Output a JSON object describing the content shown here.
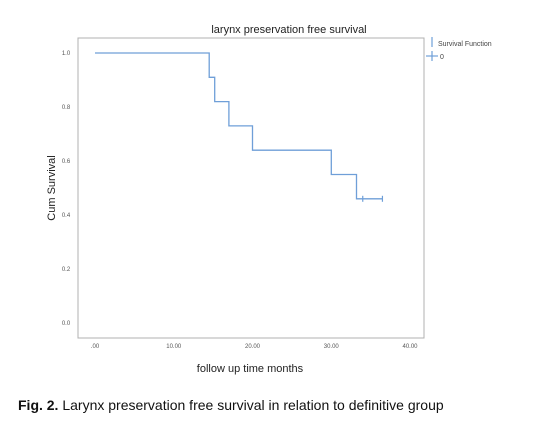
{
  "chart_data": {
    "type": "line",
    "title": "larynx preservation free survival",
    "xlabel": "follow up time months",
    "ylabel": "Cum Survival",
    "xlim": [
      0,
      40
    ],
    "ylim": [
      0,
      1
    ],
    "x_ticks": [
      ".00",
      "10.00",
      "20.00",
      "30.00",
      "40.00"
    ],
    "y_ticks": [
      "1.0",
      "0.8",
      "0.6",
      "0.4",
      "0.2",
      "0.0"
    ],
    "x_tick_values": [
      0,
      10,
      20,
      30,
      40
    ],
    "y_tick_values": [
      1.0,
      0.8,
      0.6,
      0.4,
      0.2,
      0.0
    ],
    "series": [
      {
        "name": "Survival Function",
        "step_points": [
          [
            0,
            1.0
          ],
          [
            14.5,
            1.0
          ],
          [
            14.5,
            0.91
          ],
          [
            15.2,
            0.91
          ],
          [
            15.2,
            0.82
          ],
          [
            17.0,
            0.82
          ],
          [
            17.0,
            0.73
          ],
          [
            20.0,
            0.73
          ],
          [
            20.0,
            0.64
          ],
          [
            30.0,
            0.64
          ],
          [
            30.0,
            0.55
          ],
          [
            33.2,
            0.55
          ],
          [
            33.2,
            0.46
          ],
          [
            36.5,
            0.46
          ]
        ],
        "censored": [
          [
            34.0,
            0.46
          ],
          [
            36.5,
            0.46
          ]
        ]
      }
    ],
    "legend": {
      "position": "top-right",
      "entries": [
        "Survival Function",
        "0"
      ]
    },
    "grid": false,
    "colors": {
      "line": "#6f9fd8",
      "frame": "#b0b0b0"
    }
  },
  "caption": {
    "label": "Fig. 2.",
    "text": " Larynx preservation free survival in relation to definitive group"
  }
}
